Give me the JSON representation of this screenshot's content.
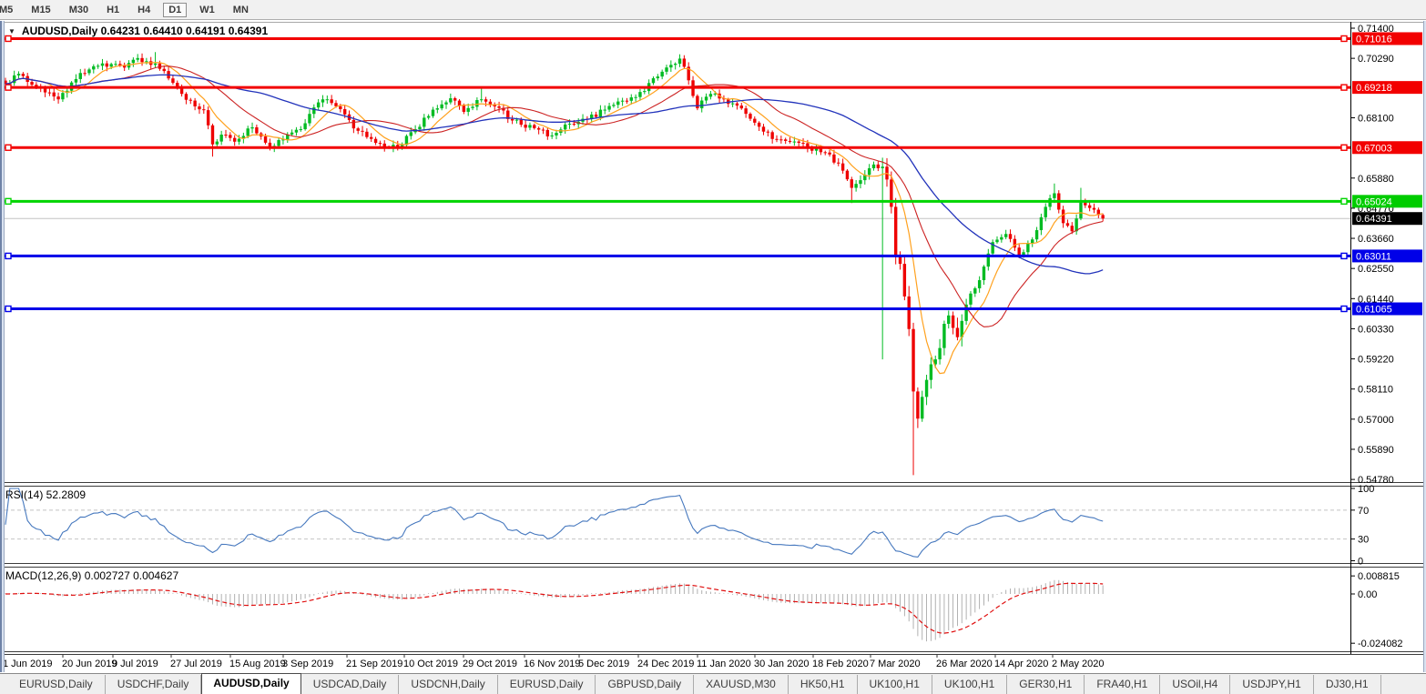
{
  "toolbar": {
    "timeframes": [
      "M5",
      "M15",
      "M30",
      "H1",
      "H4",
      "D1",
      "W1",
      "MN"
    ],
    "active": "D1"
  },
  "chart_header": {
    "dropdown_glyph": "▼",
    "text": "AUDUSD,Daily  0.64231 0.64410 0.64191 0.64391"
  },
  "price_axis": {
    "ticks": [
      "0.71400",
      "0.70290",
      "0.68100",
      "0.65880",
      "0.64770",
      "0.63660",
      "0.62550",
      "0.61440",
      "0.60330",
      "0.59220",
      "0.58110",
      "0.57000",
      "0.55890",
      "0.54780"
    ],
    "badges": [
      {
        "text": "0.71016",
        "price": 0.71016,
        "bg": "#F20000",
        "fg": "#FFFFFF"
      },
      {
        "text": "0.69218",
        "price": 0.69218,
        "bg": "#F20000",
        "fg": "#FFFFFF"
      },
      {
        "text": "0.67003",
        "price": 0.67003,
        "bg": "#F20000",
        "fg": "#FFFFFF"
      },
      {
        "text": "0.65024",
        "price": 0.65024,
        "bg": "#00CC00",
        "fg": "#FFFFFF"
      },
      {
        "text": "0.64391",
        "price": 0.64391,
        "bg": "#000000",
        "fg": "#FFFFFF"
      },
      {
        "text": "0.63011",
        "price": 0.63011,
        "bg": "#0000E8",
        "fg": "#FFFFFF"
      },
      {
        "text": "0.61065",
        "price": 0.61065,
        "bg": "#0000E8",
        "fg": "#FFFFFF"
      }
    ]
  },
  "hlines": [
    {
      "price": 0.71016,
      "color": "#F20000",
      "w": 3
    },
    {
      "price": 0.69218,
      "color": "#F20000",
      "w": 3
    },
    {
      "price": 0.67003,
      "color": "#F20000",
      "w": 3
    },
    {
      "price": 0.65024,
      "color": "#00D500",
      "w": 3
    },
    {
      "price": 0.63011,
      "color": "#0000E8",
      "w": 3
    },
    {
      "price": 0.61065,
      "color": "#0000E8",
      "w": 3
    }
  ],
  "current_price": {
    "value": 0.64391,
    "line_color": "#C4C4C4"
  },
  "date_axis": [
    [
      3,
      "1 Jun 2019"
    ],
    [
      68,
      "20 Jun 2019"
    ],
    [
      123,
      "9 Jul 2019"
    ],
    [
      187,
      "27 Jul 2019"
    ],
    [
      252,
      "15 Aug 2019"
    ],
    [
      310,
      "3 Sep 2019"
    ],
    [
      380,
      "21 Sep 2019"
    ],
    [
      443,
      "10 Oct 2019"
    ],
    [
      508,
      "29 Oct 2019"
    ],
    [
      575,
      "16 Nov 2019"
    ],
    [
      635,
      "5 Dec 2019"
    ],
    [
      700,
      "24 Dec 2019"
    ],
    [
      765,
      "11 Jan 2020"
    ],
    [
      828,
      "30 Jan 2020"
    ],
    [
      892,
      "18 Feb 2020"
    ],
    [
      955,
      "7 Mar 2020"
    ],
    [
      1028,
      "26 Mar 2020"
    ],
    [
      1092,
      "14 Apr 2020"
    ],
    [
      1155,
      "2 May 2020"
    ]
  ],
  "rsi": {
    "label": "RSI(14) 52.2809",
    "value": 52.2809,
    "period": 14,
    "axis_labels": [
      "100",
      "70",
      "30",
      "0"
    ],
    "upper_level": 70,
    "lower_level": 30,
    "color": "#4678BE",
    "level_color": "#C4C4C4"
  },
  "macd": {
    "label": "MACD(12,26,9) 0.002727 0.004627",
    "main": 0.002727,
    "signal": 0.004627,
    "axis_labels": [
      "0.008815",
      "0.00",
      "-0.024082"
    ],
    "axis_values": [
      0.008815,
      0,
      -0.024082
    ],
    "hist_color": "#A8A8A8",
    "signal_color": "#E01010"
  },
  "tabs": {
    "items": [
      "EURUSD,Daily",
      "USDCHF,Daily",
      "AUDUSD,Daily",
      "USDCAD,Daily",
      "USDCNH,Daily",
      "EURUSD,Daily",
      "GBPUSD,Daily",
      "XAUUSD,M30",
      "HK50,H1",
      "UK100,H1",
      "UK100,H1",
      "GER30,H1",
      "FRA40,H1",
      "USOil,H4",
      "USDJPY,H1",
      "DJ30,H1"
    ],
    "active_index": 2,
    "scroll_left": "◄",
    "scroll_right": "►"
  },
  "chart_data": {
    "type": "candlestick",
    "symbol": "AUDUSD",
    "timeframe": "Daily",
    "last_bar": {
      "open": 0.64231,
      "high": 0.6441,
      "low": 0.64191,
      "close": 0.64391
    },
    "y_axis_range": [
      0.5478,
      0.714
    ],
    "n_bars": 250,
    "x_first_label": "1 Jun 2019",
    "x_last_label": "2 May 2020",
    "levels": [
      0.71016,
      0.69218,
      0.67003,
      0.65024,
      0.63011,
      0.61065
    ],
    "candle_colors": {
      "up": "#00BB22",
      "down": "#EE0000"
    },
    "moving_averages": [
      {
        "name": "fast",
        "period": 8,
        "color": "#FFA11E",
        "w": 1.2
      },
      {
        "name": "medium",
        "period": 21,
        "color": "#CC2222",
        "w": 1.1
      },
      {
        "name": "slow",
        "period": 45,
        "color": "#2233BB",
        "w": 1.3
      }
    ],
    "price_path_anchors": [
      [
        0,
        0.6935
      ],
      [
        3,
        0.6972
      ],
      [
        7,
        0.6925
      ],
      [
        12,
        0.6878
      ],
      [
        15,
        0.694
      ],
      [
        19,
        0.6988
      ],
      [
        24,
        0.7008
      ],
      [
        27,
        0.6995
      ],
      [
        30,
        0.703
      ],
      [
        34,
        0.701
      ],
      [
        37,
        0.6955
      ],
      [
        40,
        0.6898
      ],
      [
        43,
        0.6852
      ],
      [
        45,
        0.6838
      ],
      [
        47,
        0.6712
      ],
      [
        49,
        0.6748
      ],
      [
        52,
        0.6722
      ],
      [
        56,
        0.6775
      ],
      [
        60,
        0.67
      ],
      [
        63,
        0.673
      ],
      [
        67,
        0.6768
      ],
      [
        70,
        0.6848
      ],
      [
        73,
        0.6878
      ],
      [
        76,
        0.6842
      ],
      [
        80,
        0.6762
      ],
      [
        85,
        0.6715
      ],
      [
        89,
        0.6702
      ],
      [
        93,
        0.6768
      ],
      [
        97,
        0.684
      ],
      [
        101,
        0.6882
      ],
      [
        104,
        0.6832
      ],
      [
        108,
        0.6878
      ],
      [
        111,
        0.6852
      ],
      [
        115,
        0.68
      ],
      [
        120,
        0.6772
      ],
      [
        124,
        0.6745
      ],
      [
        128,
        0.6788
      ],
      [
        132,
        0.6805
      ],
      [
        136,
        0.684
      ],
      [
        140,
        0.6873
      ],
      [
        144,
        0.6905
      ],
      [
        148,
        0.6962
      ],
      [
        151,
        0.7005
      ],
      [
        153,
        0.7028
      ],
      [
        155,
        0.6948
      ],
      [
        157,
        0.6845
      ],
      [
        160,
        0.6898
      ],
      [
        163,
        0.6878
      ],
      [
        166,
        0.6855
      ],
      [
        170,
        0.6792
      ],
      [
        174,
        0.6732
      ],
      [
        178,
        0.6722
      ],
      [
        182,
        0.67
      ],
      [
        186,
        0.6682
      ],
      [
        189,
        0.6642
      ],
      [
        192,
        0.6552
      ],
      [
        195,
        0.66
      ],
      [
        197,
        0.6638
      ],
      [
        199,
        0.663
      ],
      [
        201,
        0.6482
      ],
      [
        202,
        0.6302
      ],
      [
        203,
        0.6272
      ],
      [
        204,
        0.6152
      ],
      [
        205,
        0.6032
      ],
      [
        206,
        0.5802
      ],
      [
        207,
        0.5702
      ],
      [
        208,
        0.5782
      ],
      [
        210,
        0.5902
      ],
      [
        212,
        0.5962
      ],
      [
        214,
        0.6082
      ],
      [
        216,
        0.6002
      ],
      [
        218,
        0.6122
      ],
      [
        220,
        0.6182
      ],
      [
        222,
        0.6262
      ],
      [
        224,
        0.6352
      ],
      [
        227,
        0.6382
      ],
      [
        230,
        0.6302
      ],
      [
        233,
        0.6362
      ],
      [
        236,
        0.6482
      ],
      [
        238,
        0.6532
      ],
      [
        240,
        0.6422
      ],
      [
        242,
        0.6392
      ],
      [
        244,
        0.6498
      ],
      [
        246,
        0.6478
      ],
      [
        248,
        0.6452
      ],
      [
        249,
        0.64391
      ]
    ],
    "special_bars": {
      "30": {
        "high": 0.7045
      },
      "34": {
        "high": 0.7052
      },
      "47": {
        "low": 0.6667
      },
      "108": {
        "high": 0.6921
      },
      "153": {
        "high": 0.7035
      },
      "192": {
        "low": 0.6496
      },
      "199": {
        "low": 0.592
      },
      "206": {
        "low": 0.5494
      },
      "238": {
        "high": 0.6568
      },
      "244": {
        "high": 0.6552
      }
    }
  }
}
